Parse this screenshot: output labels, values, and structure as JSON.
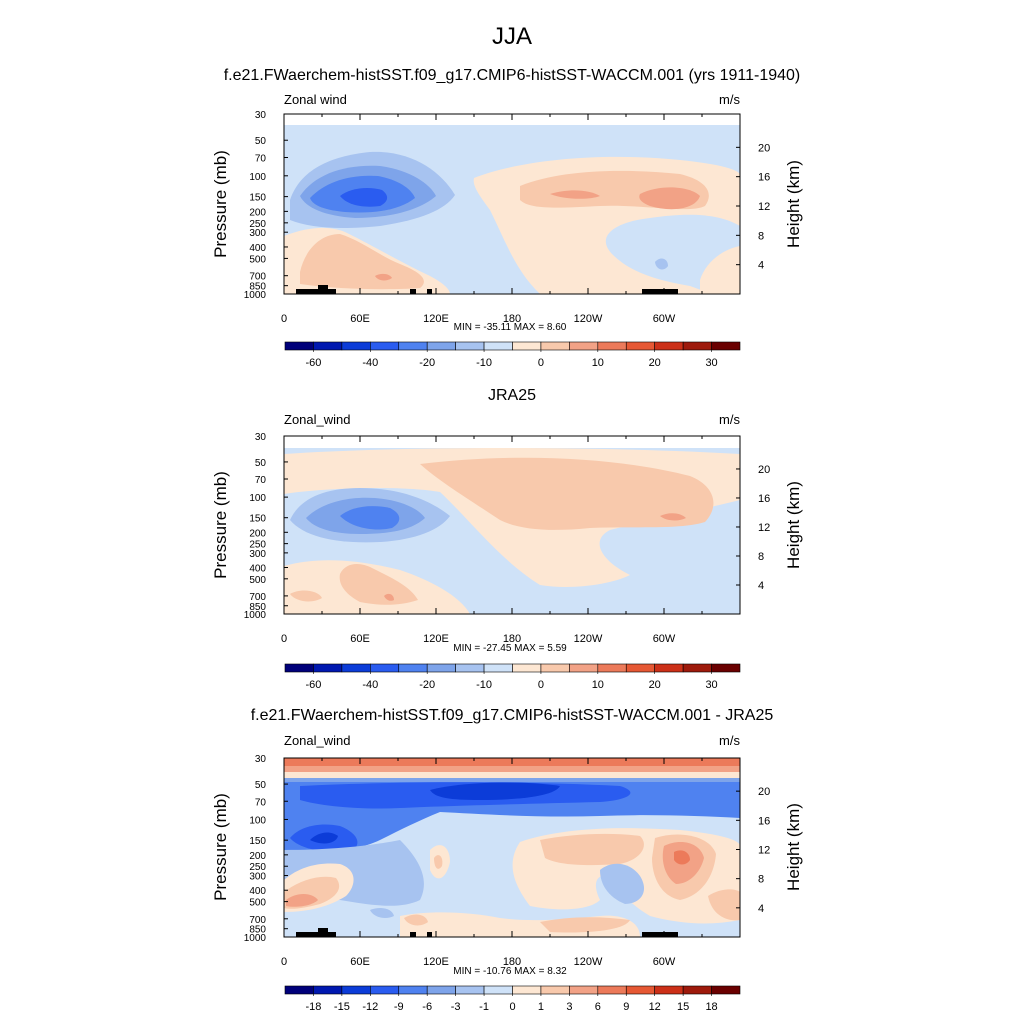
{
  "page": {
    "title": "JJA"
  },
  "panels": [
    {
      "title": "f.e21.FWaerchem-histSST.f09_g17.CMIP6-histSST-WACCM.001 (yrs 1911-1940)",
      "left_label": "Zonal wind",
      "right_label": "m/s",
      "stats": "MIN = -35.11  MAX =   8.60",
      "topography": true
    },
    {
      "title": "JRA25",
      "left_label": "Zonal_wind",
      "right_label": "m/s",
      "stats": "MIN = -27.45  MAX =   5.59",
      "topography": false
    },
    {
      "title": "f.e21.FWaerchem-histSST.f09_g17.CMIP6-histSST-WACCM.001 - JRA25",
      "left_label": "Zonal_wind",
      "right_label": "m/s",
      "stats": "MIN = -10.76  MAX =   8.32",
      "topography": true
    }
  ],
  "axes": {
    "ylabel_left": "Pressure (mb)",
    "ylabel_right": "Height (km)",
    "pressure_ticks": [
      "30",
      "50",
      "70",
      "100",
      "150",
      "200",
      "250",
      "300",
      "400",
      "500",
      "700",
      "850",
      "1000"
    ],
    "height_ticks": [
      "20",
      "16",
      "12",
      "8",
      "4"
    ],
    "lon_ticks": [
      "0",
      "60E",
      "120E",
      "180",
      "120W",
      "60W"
    ]
  },
  "colorbars": [
    {
      "labels": [
        "-60",
        "-40",
        "-20",
        "-10",
        "0",
        "10",
        "20",
        "30"
      ],
      "colors": [
        "#00007a",
        "#0018b0",
        "#0c3cd8",
        "#2a5cf0",
        "#4f82f0",
        "#7ea4ea",
        "#a7c3f0",
        "#cfe2f8",
        "#fde7d3",
        "#f8c9ac",
        "#f2a286",
        "#ec7a5a",
        "#e65834",
        "#cc3018",
        "#9e1a0c",
        "#6a0000"
      ]
    },
    {
      "labels": [
        "-60",
        "-40",
        "-20",
        "-10",
        "0",
        "10",
        "20",
        "30"
      ],
      "colors": [
        "#00007a",
        "#0018b0",
        "#0c3cd8",
        "#2a5cf0",
        "#4f82f0",
        "#7ea4ea",
        "#a7c3f0",
        "#cfe2f8",
        "#fde7d3",
        "#f8c9ac",
        "#f2a286",
        "#ec7a5a",
        "#e65834",
        "#cc3018",
        "#9e1a0c",
        "#6a0000"
      ]
    },
    {
      "labels": [
        "-18",
        "-15",
        "-12",
        "-9",
        "-6",
        "-3",
        "-1",
        "0",
        "1",
        "3",
        "6",
        "9",
        "12",
        "15",
        "18"
      ],
      "colors": [
        "#00007a",
        "#0018b0",
        "#0c3cd8",
        "#2a5cf0",
        "#4f82f0",
        "#7ea4ea",
        "#a7c3f0",
        "#cfe2f8",
        "#fde7d3",
        "#f8c9ac",
        "#f2a286",
        "#ec7a5a",
        "#e65834",
        "#cc3018",
        "#9e1a0c",
        "#6a0000"
      ]
    }
  ],
  "chart_data": [
    {
      "type": "heatmap",
      "title": "f.e21.FWaerchem-histSST.f09_g17.CMIP6-histSST-WACCM.001 (yrs 1911-1940)",
      "field": "Zonal wind",
      "units": "m/s",
      "x": [
        "0",
        "60E",
        "120E",
        "180",
        "120W",
        "60W"
      ],
      "y": [
        30,
        50,
        70,
        100,
        150,
        200,
        250,
        300,
        400,
        500,
        700,
        850,
        1000
      ],
      "min": -35.11,
      "max": 8.6,
      "ylabel": "Pressure (mb)",
      "ylabel_right": "Height (km)"
    },
    {
      "type": "heatmap",
      "title": "JRA25",
      "field": "Zonal_wind",
      "units": "m/s",
      "x": [
        "0",
        "60E",
        "120E",
        "180",
        "120W",
        "60W"
      ],
      "y": [
        30,
        50,
        70,
        100,
        150,
        200,
        250,
        300,
        400,
        500,
        700,
        850,
        1000
      ],
      "min": -27.45,
      "max": 5.59,
      "ylabel": "Pressure (mb)",
      "ylabel_right": "Height (km)"
    },
    {
      "type": "heatmap",
      "title": "f.e21.FWaerchem-histSST.f09_g17.CMIP6-histSST-WACCM.001 - JRA25",
      "field": "Zonal_wind",
      "units": "m/s",
      "x": [
        "0",
        "60E",
        "120E",
        "180",
        "120W",
        "60W"
      ],
      "y": [
        30,
        50,
        70,
        100,
        150,
        200,
        250,
        300,
        400,
        500,
        700,
        850,
        1000
      ],
      "min": -10.76,
      "max": 8.32,
      "ylabel": "Pressure (mb)",
      "ylabel_right": "Height (km)"
    }
  ]
}
